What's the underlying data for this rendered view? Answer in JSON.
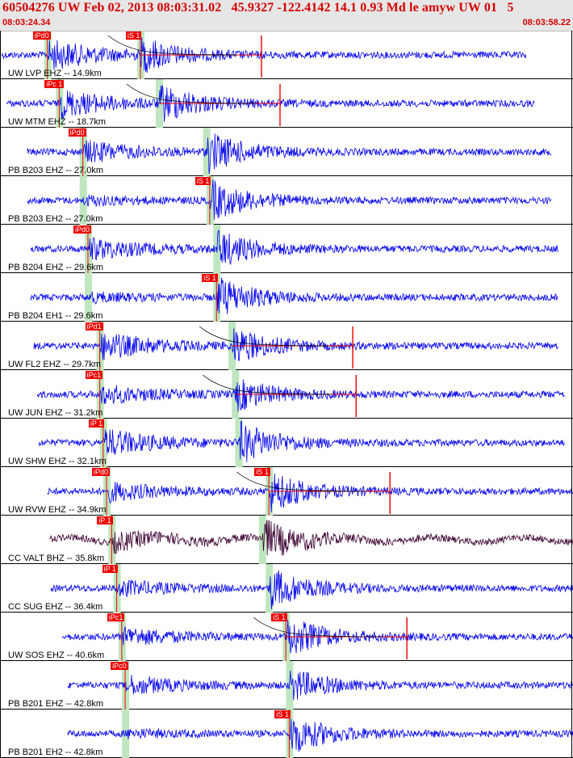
{
  "header": {
    "title": "60504276 UW Feb 02, 2013 08:03:31.02   45.9327 -122.4142 14.1 0.93 Md le amyw UW 01   5",
    "start_time": "08:03:24.34",
    "end_time": "08:03:58.22"
  },
  "colors": {
    "trace": "#0000ee",
    "trace_bb": "#3a0030",
    "pick": "#ee0000",
    "window": "#bfe6bf",
    "header_bg": "#e6e6e6",
    "header_text": "#d40000"
  },
  "traces": [
    {
      "label": "UW LVP EHZ -- 14.9km",
      "color": "trace",
      "p_label": "iPd0",
      "s_label": "iS 1",
      "p_time": 2.8,
      "s_time": 8.3,
      "start_time": 0.1,
      "end_time": 31.1,
      "amp": 1.0,
      "s_amp": 0.8,
      "red_tail": true,
      "decay": true
    },
    {
      "label": "UW MTM EHZ -- 18.7km",
      "color": "trace",
      "p_label": "iPc 1",
      "s_label": "",
      "p_time": 3.5,
      "s_time": 9.4,
      "start_time": 0.4,
      "end_time": 31.6,
      "amp": 0.9,
      "s_amp": 0.9,
      "red_tail": true,
      "decay": true
    },
    {
      "label": "PB B203 EHZ -- 27.0km",
      "color": "trace",
      "p_label": "iPd0",
      "s_label": "",
      "p_time": 4.9,
      "s_time": 12.2,
      "start_time": 1.6,
      "end_time": 32.6,
      "amp": 0.7,
      "s_amp": 1.0,
      "red_tail": false,
      "decay": false
    },
    {
      "label": "PB B203 EH2 -- 27.0km",
      "color": "trace",
      "p_label": "",
      "s_label": "iS 1",
      "p_time": 4.9,
      "s_time": 12.4,
      "start_time": 1.6,
      "end_time": 32.6,
      "amp": 0.25,
      "s_amp": 1.0,
      "red_tail": false,
      "decay": false
    },
    {
      "label": "PB B204 EHZ -- 29.6km",
      "color": "trace",
      "p_label": "iPd0",
      "s_label": "",
      "p_time": 5.2,
      "s_time": 12.8,
      "start_time": 1.8,
      "end_time": 33.0,
      "amp": 0.7,
      "s_amp": 0.9,
      "red_tail": false,
      "decay": false
    },
    {
      "label": "PB B204 EH1 -- 29.6km",
      "color": "trace",
      "p_label": "",
      "s_label": "iS 1",
      "p_time": 5.2,
      "s_time": 12.8,
      "start_time": 1.8,
      "end_time": 33.0,
      "amp": 0.25,
      "s_amp": 1.0,
      "red_tail": false,
      "decay": false
    },
    {
      "label": "UW FL2 EHZ -- 29.7km",
      "color": "trace",
      "p_label": "iPd1",
      "s_label": "",
      "p_time": 5.9,
      "s_time": 13.7,
      "start_time": 2.0,
      "end_time": 33.0,
      "amp": 0.9,
      "s_amp": 0.9,
      "red_tail": true,
      "decay": true
    },
    {
      "label": "UW JUN EHZ -- 31.2km",
      "color": "trace",
      "p_label": "iPc1",
      "s_label": "",
      "p_time": 5.9,
      "s_time": 13.9,
      "start_time": 2.2,
      "end_time": 33.4,
      "amp": 0.6,
      "s_amp": 0.8,
      "red_tail": true,
      "decay": true
    },
    {
      "label": "UW SHW EHZ -- 32.1km",
      "color": "trace",
      "p_label": "iP 1",
      "s_label": "",
      "p_time": 6.1,
      "s_time": 14.1,
      "start_time": 2.3,
      "end_time": 33.4,
      "amp": 0.9,
      "s_amp": 1.0,
      "red_tail": false,
      "decay": false
    },
    {
      "label": "UW RVW EHZ -- 34.9km",
      "color": "trace",
      "p_label": "iPd0",
      "s_label": "iS 1",
      "p_time": 6.3,
      "s_time": 15.9,
      "start_time": 2.8,
      "end_time": 34.0,
      "amp": 0.6,
      "s_amp": 1.0,
      "red_tail": true,
      "decay": true
    },
    {
      "label": "CC VALT BHZ -- 35.8km",
      "color": "trace_bb",
      "p_label": "iP 1",
      "s_label": "",
      "p_time": 6.6,
      "s_time": 15.5,
      "start_time": 2.9,
      "end_time": 34.2,
      "amp": 0.6,
      "s_amp": 1.0,
      "red_tail": false,
      "decay": false
    },
    {
      "label": "CC SUG EHZ -- 36.4km",
      "color": "trace",
      "p_label": "iP 1",
      "s_label": "",
      "p_time": 6.9,
      "s_time": 15.9,
      "start_time": 3.0,
      "end_time": 34.3,
      "amp": 0.5,
      "s_amp": 1.0,
      "red_tail": false,
      "decay": false
    },
    {
      "label": "UW SOS EHZ -- 40.6km",
      "color": "trace",
      "p_label": "iPc1",
      "s_label": "iS 1",
      "p_time": 7.2,
      "s_time": 16.9,
      "start_time": 3.7,
      "end_time": 34.3,
      "amp": 0.6,
      "s_amp": 1.0,
      "red_tail": true,
      "decay": true
    },
    {
      "label": "PB B201 EHZ -- 42.8km",
      "color": "trace",
      "p_label": "iPc0",
      "s_label": "",
      "p_time": 7.4,
      "s_time": 17.1,
      "start_time": 4.0,
      "end_time": 34.3,
      "amp": 0.6,
      "s_amp": 0.8,
      "red_tail": false,
      "decay": false
    },
    {
      "label": "PB B201 EH2 -- 42.8km",
      "color": "trace",
      "p_label": "",
      "s_label": "iS 1",
      "p_time": 7.4,
      "s_time": 17.1,
      "start_time": 4.0,
      "end_time": 34.3,
      "amp": 0.2,
      "s_amp": 1.0,
      "red_tail": false,
      "decay": false
    }
  ]
}
